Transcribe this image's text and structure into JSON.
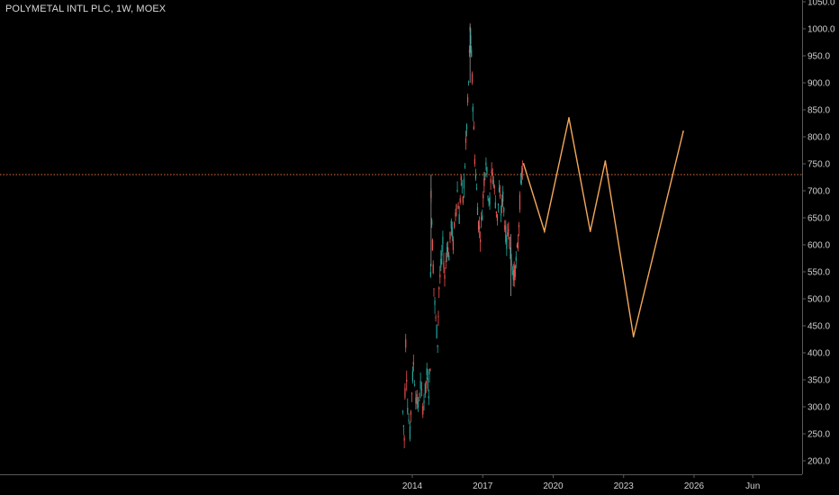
{
  "header": {
    "title": "POLYMETAL INTL PLC, 1W, MOEX"
  },
  "colors": {
    "background": "#000000",
    "axis": "#5a5a5a",
    "tick_text": "#cfcfcf",
    "candle_up": "#26a69a",
    "candle_down": "#ef5350",
    "projection": "#f5a85a",
    "hline": "#e0703c"
  },
  "chart_data": {
    "type": "line",
    "title": "POLYMETAL INTL PLC, 1W, MOEX",
    "xlabel": "",
    "ylabel": "",
    "y_axis_position": "right",
    "ylim": [
      190,
      1050
    ],
    "y_ticks": [
      "200.0",
      "250.0",
      "300.0",
      "350.0",
      "400.0",
      "450.0",
      "500.0",
      "550.0",
      "600.0",
      "650.0",
      "700.0",
      "750.0",
      "800.0",
      "850.0",
      "900.0",
      "950.0",
      "1000.0",
      "1050.0"
    ],
    "x_ticks": [
      {
        "label": "2014",
        "year": 2014.0
      },
      {
        "label": "2017",
        "year": 2017.0
      },
      {
        "label": "2020",
        "year": 2020.0
      },
      {
        "label": "2023",
        "year": 2023.0
      },
      {
        "label": "2026",
        "year": 2026.0
      },
      {
        "label": "Jun",
        "year": 2028.5
      }
    ],
    "horizontal_line": {
      "value": 730
    },
    "price_series": {
      "name": "",
      "interval": "1W",
      "points": [
        [
          2013.6,
          290
        ],
        [
          2013.66,
          240
        ],
        [
          2013.72,
          420
        ],
        [
          2013.8,
          300
        ],
        [
          2013.9,
          250
        ],
        [
          2013.98,
          330
        ],
        [
          2014.05,
          380
        ],
        [
          2014.15,
          320
        ],
        [
          2014.25,
          300
        ],
        [
          2014.35,
          340
        ],
        [
          2014.45,
          300
        ],
        [
          2014.55,
          330
        ],
        [
          2014.62,
          360
        ],
        [
          2014.7,
          330
        ],
        [
          2014.76,
          380
        ],
        [
          2014.8,
          700
        ],
        [
          2014.86,
          600
        ],
        [
          2014.92,
          520
        ],
        [
          2015.0,
          460
        ],
        [
          2015.08,
          420
        ],
        [
          2015.14,
          520
        ],
        [
          2015.22,
          560
        ],
        [
          2015.3,
          600
        ],
        [
          2015.38,
          540
        ],
        [
          2015.48,
          600
        ],
        [
          2015.56,
          580
        ],
        [
          2015.66,
          640
        ],
        [
          2015.74,
          600
        ],
        [
          2015.84,
          660
        ],
        [
          2015.92,
          700
        ],
        [
          2016.0,
          650
        ],
        [
          2016.08,
          720
        ],
        [
          2016.16,
          680
        ],
        [
          2016.24,
          750
        ],
        [
          2016.32,
          820
        ],
        [
          2016.4,
          900
        ],
        [
          2016.46,
          1000
        ],
        [
          2016.52,
          950
        ],
        [
          2016.58,
          860
        ],
        [
          2016.66,
          760
        ],
        [
          2016.74,
          700
        ],
        [
          2016.82,
          640
        ],
        [
          2016.9,
          620
        ],
        [
          2016.98,
          660
        ],
        [
          2017.06,
          720
        ],
        [
          2017.14,
          760
        ],
        [
          2017.22,
          700
        ],
        [
          2017.3,
          680
        ],
        [
          2017.38,
          740
        ],
        [
          2017.46,
          720
        ],
        [
          2017.54,
          680
        ],
        [
          2017.62,
          650
        ],
        [
          2017.7,
          700
        ],
        [
          2017.78,
          660
        ],
        [
          2017.86,
          690
        ],
        [
          2017.94,
          640
        ],
        [
          2018.02,
          600
        ],
        [
          2018.1,
          640
        ],
        [
          2018.18,
          580
        ],
        [
          2018.26,
          560
        ],
        [
          2018.34,
          540
        ],
        [
          2018.42,
          570
        ],
        [
          2018.5,
          600
        ],
        [
          2018.58,
          680
        ],
        [
          2018.66,
          730
        ],
        [
          2018.72,
          750
        ]
      ]
    },
    "projection_series": {
      "name": "",
      "points": [
        [
          2018.74,
          750
        ],
        [
          2019.63,
          625
        ],
        [
          2020.67,
          835
        ],
        [
          2021.58,
          625
        ],
        [
          2022.22,
          755
        ],
        [
          2023.42,
          430
        ],
        [
          2025.54,
          810
        ]
      ]
    }
  }
}
